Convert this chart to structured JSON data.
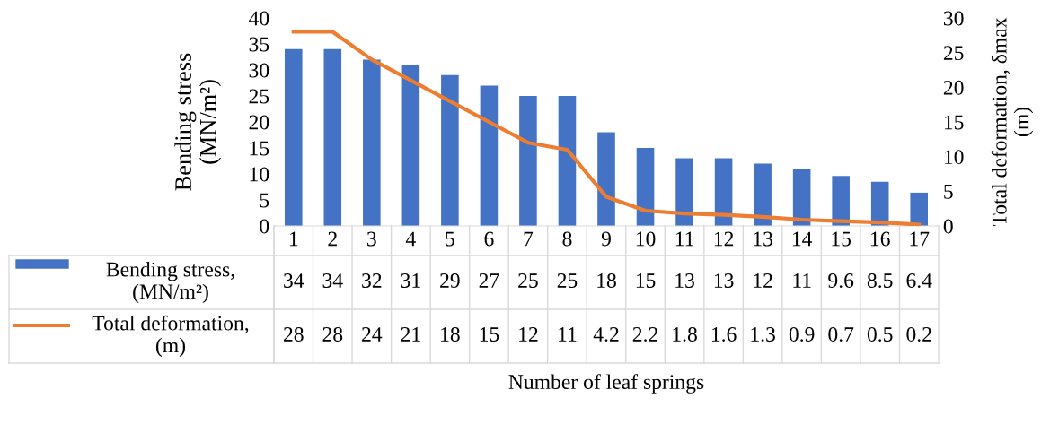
{
  "chart_data": {
    "type": "bar",
    "annotations": [
      "Number of leaf springs"
    ],
    "ylabel": "Bending stress\n(MN/m²)",
    "y2label": "Total deformation, δmax\n(m)",
    "categories": [
      "1",
      "2",
      "3",
      "4",
      "5",
      "6",
      "7",
      "8",
      "9",
      "10",
      "11",
      "12",
      "13",
      "14",
      "15",
      "16",
      "17"
    ],
    "series": [
      {
        "name": "Bending stress,\n(MN/m²)",
        "color": "#4472c4",
        "values": [
          34,
          34,
          32,
          31,
          29,
          27,
          25,
          25,
          18,
          15,
          13,
          13,
          12,
          11,
          9.6,
          8.5,
          6.4
        ]
      },
      {
        "name": "Total deformation,\n(m)",
        "type": "line",
        "axis": "y2",
        "color": "#ed7d31",
        "values": [
          28,
          28,
          24,
          21,
          18,
          15,
          12,
          11,
          4.2,
          2.2,
          1.8,
          1.6,
          1.3,
          0.9,
          0.7,
          0.5,
          0.2
        ]
      }
    ],
    "ylim": [
      0,
      40
    ],
    "yticks": [
      0,
      5,
      10,
      15,
      20,
      25,
      30,
      35,
      40
    ],
    "y2lim": [
      0,
      30
    ],
    "y2ticks": [
      0,
      5,
      10,
      15,
      20,
      25,
      30
    ],
    "data_labels": true,
    "grid": false,
    "legend": "bottom left",
    "marker": "none"
  }
}
